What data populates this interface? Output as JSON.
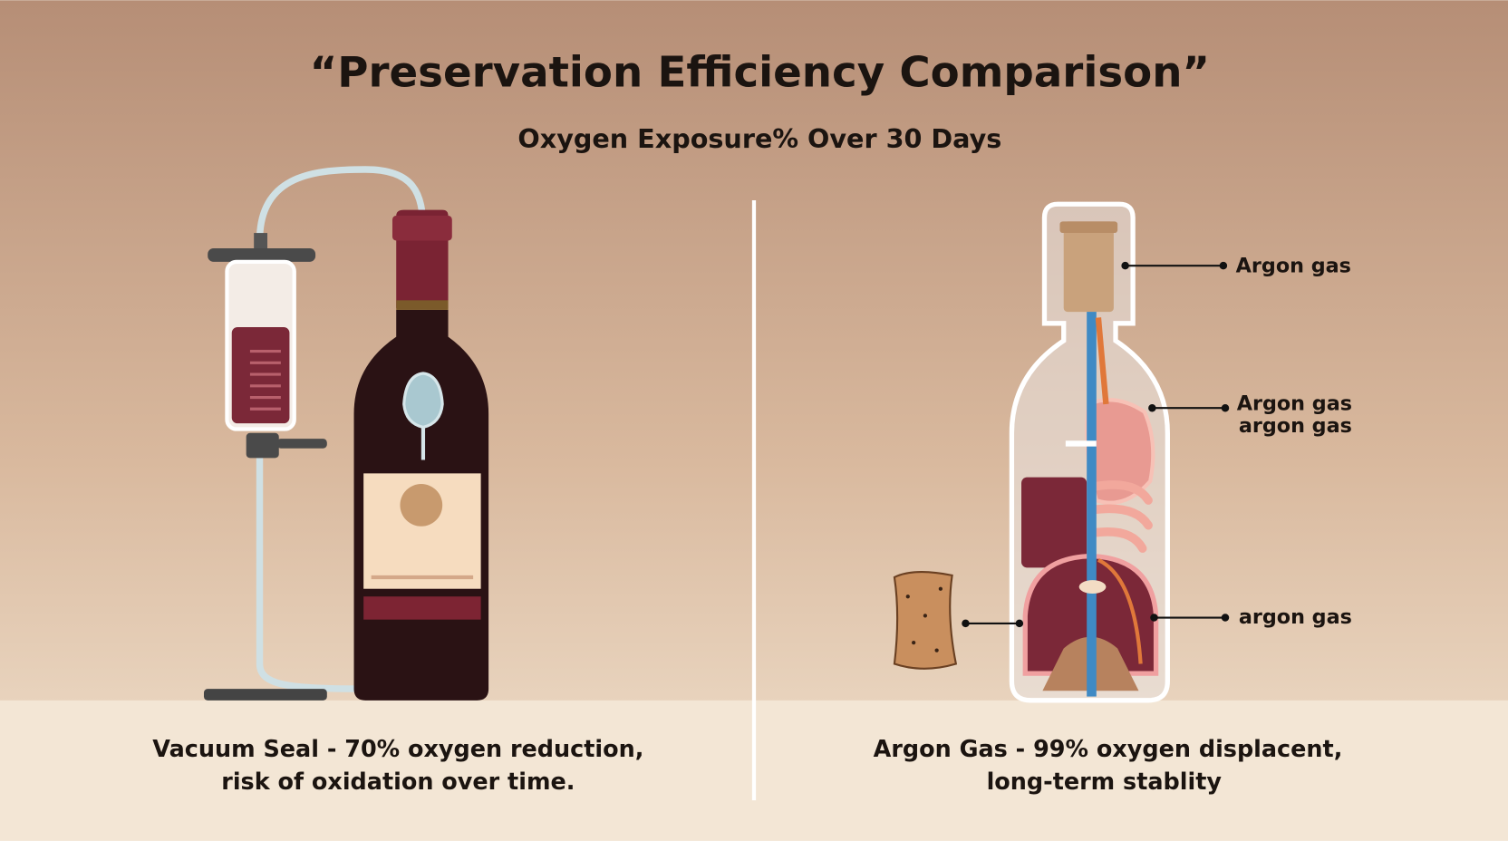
{
  "title": "“Preservation Efficiency Comparison”",
  "subtitle": "Oxygen Exposure% Over 30 Days",
  "panels": [
    {
      "caption": [
        "Vacuum Seal - 70% oxygen reduction,",
        "risk of oxidation over time."
      ]
    },
    {
      "labels": [
        [
          "Argon gas"
        ],
        [
          "Argon gas",
          "argon gas"
        ],
        [
          "argon gas"
        ]
      ],
      "caption": [
        "Argon Gas - 99% oxygen displacent,",
        "long-term stablity"
      ]
    }
  ]
}
